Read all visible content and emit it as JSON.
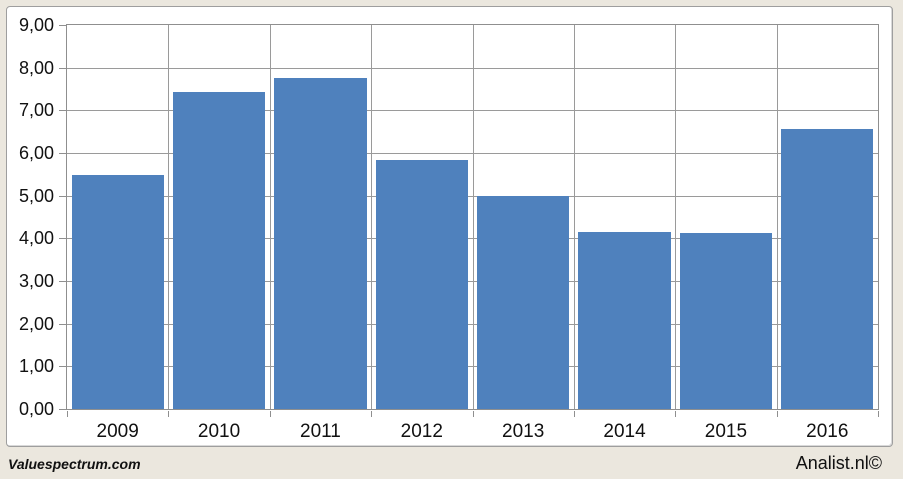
{
  "chart_data": {
    "type": "bar",
    "categories": [
      "2009",
      "2010",
      "2011",
      "2012",
      "2013",
      "2014",
      "2015",
      "2016"
    ],
    "values": [
      5.48,
      7.44,
      7.76,
      5.83,
      4.99,
      4.15,
      4.13,
      6.57
    ],
    "title": "",
    "xlabel": "",
    "ylabel": "",
    "ylim": [
      0,
      9
    ],
    "ytick_step": 1,
    "ytick_labels": [
      "0,00",
      "1,00",
      "2,00",
      "3,00",
      "4,00",
      "5,00",
      "6,00",
      "7,00",
      "8,00",
      "9,00"
    ],
    "decimal_separator": "comma",
    "grid": true,
    "legend": "none",
    "bar_gap_fraction": 0.09
  },
  "footer": {
    "left_brand": "Valuespectrum.com",
    "right_brand": "Analist.nl©"
  },
  "colors": {
    "page_background": "#ebe7de",
    "panel_background": "#ffffff",
    "panel_border": "#9e9e9e",
    "plot_border": "#8f8f8f",
    "gridline": "#9a9a9a",
    "bar": "#4f81bd",
    "text": "#111111"
  }
}
